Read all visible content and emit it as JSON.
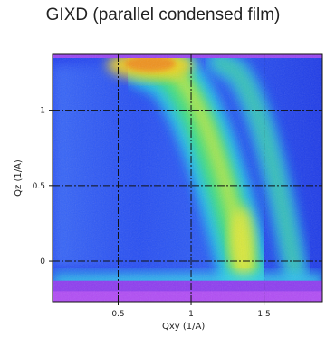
{
  "chart_data": {
    "type": "heatmap",
    "title": "GIXD (parallel condensed film)",
    "xlabel": "Qxy (1/A)",
    "ylabel": "Qz (1/A)",
    "xlim": [
      0.05,
      1.9
    ],
    "ylim": [
      -0.27,
      1.37
    ],
    "x_ticks": [
      0.5,
      1,
      1.5
    ],
    "x_tick_labels": [
      "0.5",
      "1",
      "1.5"
    ],
    "y_ticks": [
      0,
      0.5,
      1
    ],
    "y_tick_labels": [
      "0",
      "0.5",
      "1"
    ],
    "grid": true,
    "grid_style": "dash-dot black",
    "colormap": "rainbow (violet-blue-cyan-green-yellow-orange)",
    "features": [
      {
        "name": "intense arc",
        "qxy_at_qz_top": 0.7,
        "qxy_at_qz_zero": 1.35,
        "peak_intensity_region": "Qz 1.2-1.37, Qxy 0.5-0.95"
      },
      {
        "name": "secondary arc",
        "qxy_at_qz_top": 1.2,
        "qxy_at_qz_zero": 1.7
      },
      {
        "name": "yoneda/horizon band",
        "qz": -0.15
      }
    ]
  }
}
